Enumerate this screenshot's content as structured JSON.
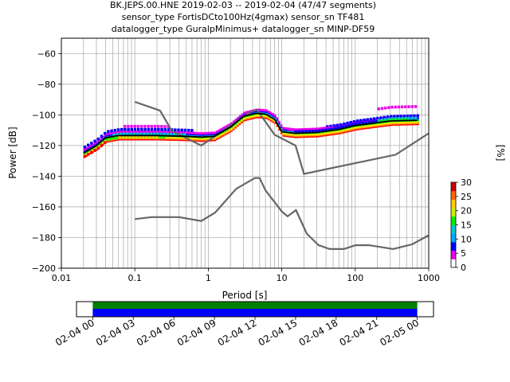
{
  "title_lines": [
    "BK.JEPS.00.HNE   2019-02-03 -- 2019-02-04  (47/47 segments)",
    "sensor_type FortisDCto100Hz(4gmax) sensor_sn TF481",
    "datalogger_type GuralpMinimus+ datalogger_sn MINP-DF59"
  ],
  "chart_data": [
    {
      "type": "heatmap",
      "description_source": "probabilistic power spectral density",
      "xlabel": "Period [s]",
      "ylabel": "Power [dB]",
      "xscale": "log",
      "xlim": [
        0.01,
        1000
      ],
      "ylim": [
        -200,
        -50
      ],
      "x_ticks": [
        0.01,
        0.1,
        1,
        10,
        100,
        1000
      ],
      "x_tick_labels": [
        "0.01",
        "0.1",
        "1",
        "10",
        "100",
        "1000"
      ],
      "y_ticks": [
        -200,
        -180,
        -160,
        -140,
        -120,
        -100,
        -80,
        -60
      ],
      "y_tick_labels": [
        "−200",
        "−180",
        "−160",
        "−140",
        "−120",
        "−100",
        "−80",
        "−60"
      ],
      "grid": true,
      "colorbar": {
        "label": "[%]",
        "range": [
          0,
          30
        ],
        "ticks": [
          0,
          5,
          10,
          15,
          20,
          25,
          30
        ],
        "tick_labels": [
          "0",
          "5",
          "10",
          "15",
          "20",
          "25",
          "30"
        ]
      },
      "series": [
        {
          "name": "",
          "color": "#666666",
          "points": [
            [
              0.1,
              -91.5
            ],
            [
              0.22,
              -97.2
            ],
            [
              0.32,
              -110.5
            ],
            [
              0.8,
              -120.0
            ],
            [
              3.8,
              -98.0
            ],
            [
              4.6,
              -96.7
            ],
            [
              8.0,
              -113.0
            ],
            [
              15.4,
              -120.0
            ],
            [
              20.0,
              -138.5
            ],
            [
              354.8,
              -126.0
            ],
            [
              1000,
              -112.0
            ]
          ]
        },
        {
          "name": "",
          "color": "#666666",
          "points": [
            [
              0.1,
              -168.0
            ],
            [
              0.17,
              -166.7
            ],
            [
              0.4,
              -166.7
            ],
            [
              0.8,
              -169.2
            ],
            [
              1.24,
              -163.7
            ],
            [
              2.4,
              -148.2
            ],
            [
              4.3,
              -141.2
            ],
            [
              5.0,
              -141.2
            ],
            [
              6.0,
              -149.2
            ],
            [
              10.0,
              -163.0
            ],
            [
              12.0,
              -166.2
            ],
            [
              15.6,
              -162.1
            ],
            [
              21.9,
              -177.5
            ],
            [
              31.6,
              -185.0
            ],
            [
              45.0,
              -187.5
            ],
            [
              70.0,
              -187.5
            ],
            [
              101,
              -185.0
            ],
            [
              154,
              -185.0
            ],
            [
              328,
              -187.5
            ],
            [
              600,
              -184.4
            ],
            [
              1000,
              -178.5
            ]
          ]
        },
        {
          "name": "",
          "color": "#000000",
          "points": [
            [
              0.02,
              -125.0
            ],
            [
              0.03,
              -120.0
            ],
            [
              0.04,
              -115.0
            ],
            [
              0.06,
              -113.5
            ],
            [
              0.1,
              -113.5
            ],
            [
              0.2,
              -113.5
            ],
            [
              0.5,
              -114.0
            ],
            [
              0.8,
              -114.5
            ],
            [
              1.2,
              -114.0
            ],
            [
              2.0,
              -108.0
            ],
            [
              3.0,
              -101.0
            ],
            [
              4.5,
              -99.0
            ],
            [
              6.0,
              -99.5
            ],
            [
              8.0,
              -103.0
            ],
            [
              10.0,
              -111.0
            ],
            [
              15.0,
              -112.0
            ],
            [
              30.0,
              -111.5
            ],
            [
              60.0,
              -109.5
            ],
            [
              100,
              -107.0
            ],
            [
              300,
              -104.0
            ],
            [
              700,
              -103.5
            ]
          ]
        }
      ],
      "heatmap_rows": [
        {
          "color": "#ee00ee",
          "offset_db": 6,
          "x_range": [
            0.07,
            0.3
          ]
        },
        {
          "color": "#0000ff",
          "offset_db": 4,
          "x_range": [
            0.02,
            0.6
          ]
        },
        {
          "color": "#00cccc",
          "offset_db": 1,
          "x_range": [
            0.05,
            0.5
          ]
        },
        {
          "color": "#00ee00",
          "offset_db": -1,
          "x_range": [
            0.04,
            0.25
          ]
        },
        {
          "color": "#ffcc00",
          "offset_db": -1,
          "x_range": [
            0.06,
            0.2
          ]
        },
        {
          "color": "#ff0000",
          "offset_db": -2,
          "x_range": [
            0.02,
            0.04
          ]
        },
        {
          "color": "#ee00ee",
          "offset_db": 9,
          "x_range": [
            200,
            700
          ]
        },
        {
          "color": "#0000ff",
          "offset_db": 3,
          "x_range": [
            40,
            700
          ]
        },
        {
          "color": "#00cccc",
          "offset_db": 1.5,
          "x_range": [
            200,
            700
          ]
        },
        {
          "color": "#00ee00",
          "offset_db": 0.5,
          "x_range": [
            100,
            500
          ]
        },
        {
          "color": "#ee00ee",
          "offset_db": 2,
          "x_range": [
            12,
            50
          ]
        },
        {
          "color": "#0000ff",
          "offset_db": 1,
          "x_range": [
            15,
            200
          ]
        }
      ]
    },
    {
      "type": "timeline",
      "x_tick_labels": [
        "02-04 00",
        "02-04 03",
        "02-04 06",
        "02-04 09",
        "02-04 12",
        "02-04 15",
        "02-04 18",
        "02-04 21",
        "02-05 00"
      ],
      "x_range_hours": [
        -1.2,
        25.2
      ],
      "bars": [
        {
          "color": "#008000",
          "start_hour": 0,
          "end_hour": 24
        },
        {
          "color": "#0000ff",
          "start_hour": 0,
          "end_hour": 24
        }
      ]
    }
  ]
}
